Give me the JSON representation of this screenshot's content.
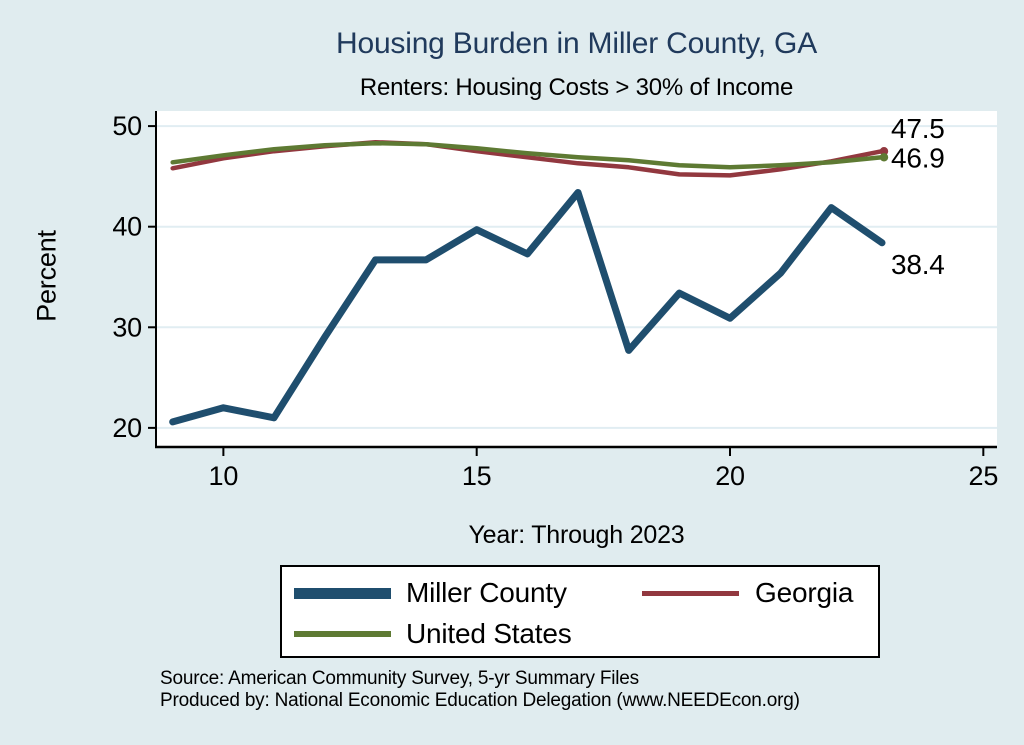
{
  "chart_data": {
    "type": "line",
    "title": "Housing Burden in Miller County, GA",
    "subtitle": "Renters: Housing Costs > 30% of Income",
    "xlabel": "Year: Through 2023",
    "ylabel": "Percent",
    "x": [
      9,
      10,
      11,
      12,
      13,
      14,
      15,
      16,
      17,
      18,
      19,
      20,
      21,
      22,
      23
    ],
    "xticks": [
      10,
      15,
      20,
      25
    ],
    "yticks": [
      50,
      40,
      30,
      20
    ],
    "xlim": [
      8.67,
      25.27
    ],
    "ylim": [
      18.1,
      51.5
    ],
    "grid": true,
    "legend_position": "bottom",
    "series": [
      {
        "name": "Miller County",
        "color_key": "miller_county",
        "stroke_width": 7,
        "end_marker": false,
        "values": [
          20.6,
          22.0,
          21.0,
          29.0,
          36.7,
          36.7,
          39.7,
          37.3,
          43.4,
          27.7,
          33.4,
          30.9,
          35.4,
          41.9,
          38.4
        ]
      },
      {
        "name": "Georgia",
        "color_key": "georgia",
        "stroke_width": 4.5,
        "end_marker": true,
        "values": [
          45.8,
          46.8,
          47.5,
          48.0,
          48.4,
          48.2,
          47.5,
          46.9,
          46.3,
          45.9,
          45.2,
          45.1,
          45.7,
          46.5,
          47.5
        ]
      },
      {
        "name": "United States",
        "color_key": "united_states",
        "stroke_width": 4.5,
        "end_marker": true,
        "values": [
          46.4,
          47.1,
          47.7,
          48.1,
          48.3,
          48.2,
          47.8,
          47.3,
          46.9,
          46.6,
          46.1,
          45.9,
          46.1,
          46.4,
          46.9
        ]
      }
    ],
    "end_labels": [
      {
        "series": "Georgia",
        "text": "47.5",
        "dy": -13
      },
      {
        "series": "United States",
        "text": "46.9",
        "dy": 10
      },
      {
        "series": "Miller County",
        "text": "38.4",
        "dy": 31
      }
    ]
  },
  "legend": {
    "items": [
      {
        "label": "Miller County",
        "color_key": "miller_county"
      },
      {
        "label": "Georgia",
        "color_key": "georgia"
      },
      {
        "label": "United States",
        "color_key": "united_states"
      }
    ]
  },
  "source": {
    "line1": "Source: American Community Survey, 5-yr Summary Files",
    "line2": "Produced by: National Economic Education Delegation (www.NEEDEcon.org)"
  },
  "colors": {
    "background": "#e0ecef",
    "plot_background": "#ffffff",
    "grid": "#e1edf2",
    "axis": "#000000",
    "title_text": "#203a5c",
    "text": "#000000",
    "miller_county": "#1f4e6e",
    "georgia": "#92383f",
    "united_states": "#5e7a33"
  }
}
